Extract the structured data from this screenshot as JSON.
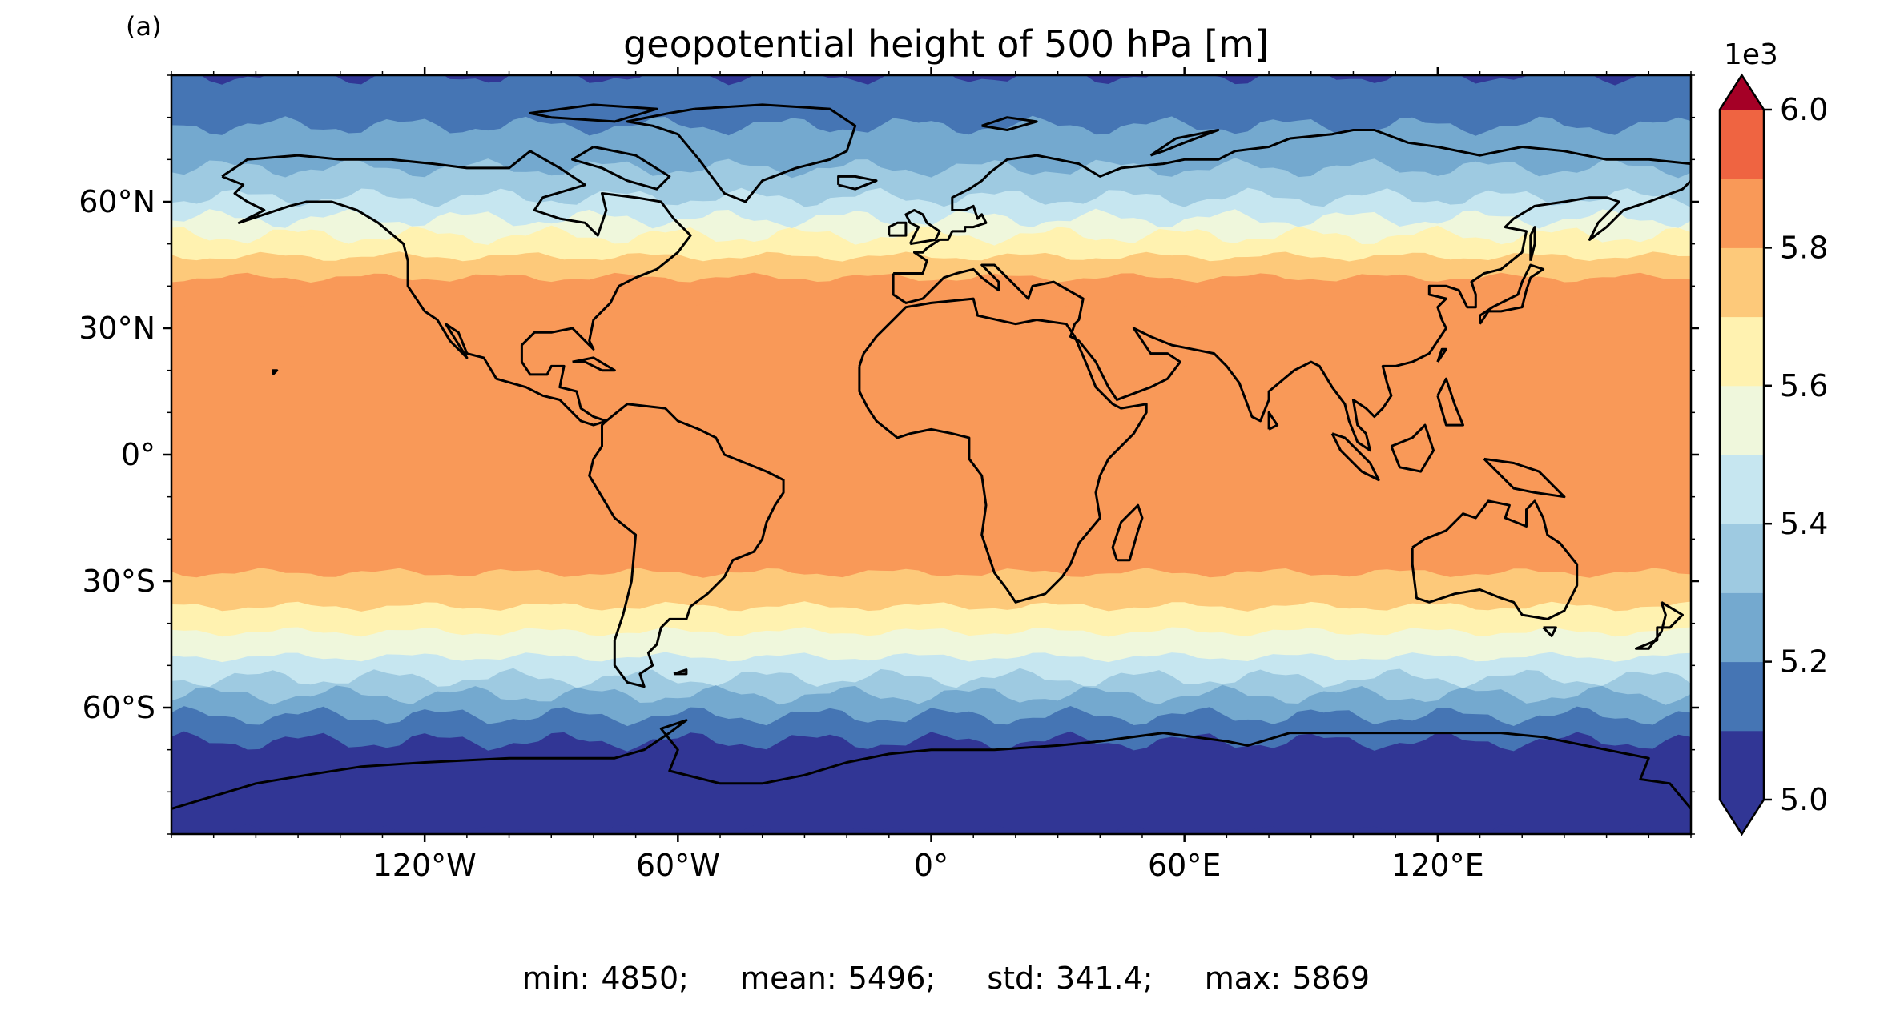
{
  "panel_label": "(a)",
  "stats": {
    "min": "min: 4850;",
    "mean": "mean: 5496;",
    "std": "std: 341.4;",
    "max": "max: 5869"
  },
  "chart_data": {
    "type": "heatmap",
    "title": "geopotential height of 500 hPa [m]",
    "projection": "PlateCarree",
    "xlabel": "",
    "ylabel": "",
    "xlim": [
      -180,
      180
    ],
    "ylim": [
      -90,
      90
    ],
    "x_ticks": [
      {
        "value": -120,
        "label": "120°W"
      },
      {
        "value": -60,
        "label": "60°W"
      },
      {
        "value": 0,
        "label": "0°"
      },
      {
        "value": 60,
        "label": "60°E"
      },
      {
        "value": 120,
        "label": "120°E"
      }
    ],
    "y_ticks": [
      {
        "value": 60,
        "label": "60°N"
      },
      {
        "value": 30,
        "label": "30°N"
      },
      {
        "value": 0,
        "label": "0°"
      },
      {
        "value": -30,
        "label": "30°S"
      },
      {
        "value": -60,
        "label": "60°S"
      }
    ],
    "colorbar": {
      "range": [
        5000,
        6000
      ],
      "exponent_label": "1e3",
      "extend": "both",
      "tick_labels": [
        {
          "value": 5000,
          "label": "5.0"
        },
        {
          "value": 5200,
          "label": "5.2"
        },
        {
          "value": 5400,
          "label": "5.4"
        },
        {
          "value": 5600,
          "label": "5.6"
        },
        {
          "value": 5800,
          "label": "5.8"
        },
        {
          "value": 6000,
          "label": "6.0"
        }
      ],
      "levels": [
        5000,
        5100,
        5200,
        5300,
        5400,
        5500,
        5600,
        5700,
        5800,
        5900,
        6000
      ],
      "colors": [
        "#313695",
        "#4575b4",
        "#74a9cf",
        "#9ecae1",
        "#c6e6f0",
        "#eff7dc",
        "#fff2b0",
        "#fdc97a",
        "#f99958",
        "#ef6441",
        "#d73027"
      ],
      "under_color": "#313695",
      "over_color": "#a50026"
    },
    "bands_north": [
      {
        "lat": 36,
        "value": 5830
      },
      {
        "lat": 42,
        "value": 5750
      },
      {
        "lat": 47,
        "value": 5650
      },
      {
        "lat": 52,
        "value": 5550
      },
      {
        "lat": 56,
        "value": 5450
      },
      {
        "lat": 61,
        "value": 5350
      },
      {
        "lat": 68,
        "value": 5250
      },
      {
        "lat": 78,
        "value": 5150
      },
      {
        "lat": 90,
        "value": 5050
      }
    ],
    "bands_south": [
      {
        "lat": -28,
        "value": 5750
      },
      {
        "lat": -36,
        "value": 5650
      },
      {
        "lat": -42,
        "value": 5550
      },
      {
        "lat": -48,
        "value": 5450
      },
      {
        "lat": -53,
        "value": 5350
      },
      {
        "lat": -57,
        "value": 5250
      },
      {
        "lat": -62,
        "value": 5150
      },
      {
        "lat": -68,
        "value": 5050
      },
      {
        "lat": -90,
        "value": 4950
      }
    ],
    "tropics_value": 5850
  }
}
